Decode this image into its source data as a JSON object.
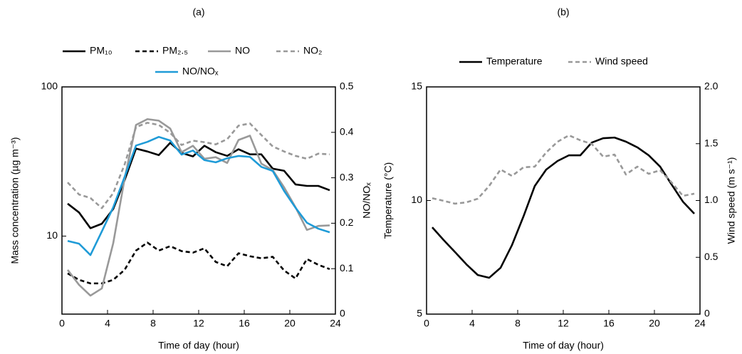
{
  "chart_data": [
    {
      "type": "line",
      "title": "(a)",
      "xlabel": "Time of day (hour)",
      "ylabel": "Mass concentration (µg m⁻³)",
      "y2label": "NO/NOₓ",
      "ylog": true,
      "legend": "top",
      "x": [
        0.5,
        1.5,
        2.5,
        3.5,
        4.5,
        5.5,
        6.5,
        7.5,
        8.5,
        9.5,
        10.5,
        11.5,
        12.5,
        13.5,
        14.5,
        15.5,
        16.5,
        17.5,
        18.5,
        19.5,
        20.5,
        21.5,
        22.5,
        23.5
      ],
      "xlim": [
        0,
        24
      ],
      "xticks": [
        0,
        4,
        8,
        12,
        16,
        20,
        24
      ],
      "ylim": [
        3,
        100
      ],
      "yticks": [
        10,
        100
      ],
      "y2lim": [
        0,
        0.5
      ],
      "y2ticks": [
        0,
        0.1,
        0.2,
        0.3,
        0.4,
        0.5
      ],
      "series": [
        {
          "name": "PM₁₀",
          "color": "#000000",
          "dash": false,
          "values": [
            16.5,
            14.4,
            11.3,
            12.1,
            15.2,
            23.7,
            38.6,
            36.9,
            34.9,
            42.2,
            36.1,
            34.2,
            40.3,
            36.5,
            34.5,
            38.2,
            35.3,
            35.3,
            28.3,
            27.4,
            22.2,
            21.7,
            21.7,
            20.3
          ]
        },
        {
          "name": "PM₂.₅",
          "color": "#000000",
          "dash": true,
          "values": [
            5.62,
            5.09,
            4.82,
            4.82,
            5.09,
            5.94,
            8.0,
            9.05,
            8.0,
            8.56,
            7.93,
            7.75,
            8.28,
            6.71,
            6.28,
            7.67,
            7.33,
            7.1,
            7.26,
            5.88,
            5.2,
            7.02,
            6.42,
            6.01
          ]
        },
        {
          "name": "NO",
          "color": "#999999",
          "dash": false,
          "values": [
            5.94,
            4.71,
            3.99,
            4.46,
            8.96,
            24.3,
            55.6,
            60.8,
            59.4,
            52.6,
            36.5,
            40.3,
            33.0,
            33.8,
            30.9,
            44.1,
            47.1,
            30.6,
            27.7,
            21.2,
            15.6,
            11.0,
            11.7,
            11.8
          ]
        },
        {
          "name": "NO₂",
          "color": "#999999",
          "dash": true,
          "values": [
            22.9,
            19.0,
            18.0,
            15.4,
            19.4,
            30.2,
            53.8,
            57.5,
            55.6,
            49.2,
            40.8,
            43.6,
            42.6,
            41.2,
            44.6,
            55.0,
            56.9,
            47.6,
            39.9,
            36.9,
            34.5,
            33.0,
            35.7,
            35.3
          ]
        },
        {
          "name": "NO/NOₓ",
          "color": "#1f9bd7",
          "dash": false,
          "axis": "y2",
          "values": [
            0.161,
            0.155,
            0.13,
            0.182,
            0.235,
            0.302,
            0.371,
            0.379,
            0.39,
            0.382,
            0.351,
            0.36,
            0.339,
            0.334,
            0.343,
            0.348,
            0.346,
            0.324,
            0.315,
            0.271,
            0.234,
            0.201,
            0.188,
            0.18
          ]
        }
      ]
    },
    {
      "type": "line",
      "title": "(b)",
      "xlabel": "Time of day (hour)",
      "ylabel": "Temperature (°C)",
      "y2label": "Wind speed (m s⁻¹)",
      "ylog": false,
      "legend": "top",
      "x": [
        0.5,
        1.5,
        2.5,
        3.5,
        4.5,
        5.5,
        6.5,
        7.5,
        8.5,
        9.5,
        10.5,
        11.5,
        12.5,
        13.5,
        14.5,
        15.5,
        16.5,
        17.5,
        18.5,
        19.5,
        20.5,
        21.5,
        22.5,
        23.5
      ],
      "xlim": [
        0,
        24
      ],
      "xticks": [
        0,
        4,
        8,
        12,
        16,
        20,
        24
      ],
      "ylim": [
        5,
        15
      ],
      "yticks": [
        5,
        10,
        15
      ],
      "y2lim": [
        0,
        2
      ],
      "y2ticks": [
        0,
        0.5,
        {
          "value": 1,
          "label": "1.0"
        },
        1.5,
        {
          "value": 2,
          "label": "2.0"
        }
      ],
      "series": [
        {
          "name": "Temperature",
          "color": "#000000",
          "dash": false,
          "values": [
            8.82,
            8.26,
            7.73,
            7.19,
            6.72,
            6.6,
            7.04,
            8.04,
            9.29,
            10.64,
            11.36,
            11.74,
            11.99,
            11.99,
            12.55,
            12.74,
            12.77,
            12.59,
            12.34,
            11.99,
            11.49,
            10.71,
            9.95,
            9.42
          ]
        },
        {
          "name": "Wind speed",
          "color": "#999999",
          "dash": true,
          "axis": "y2",
          "values": [
            1.02,
            0.997,
            0.972,
            0.984,
            1.016,
            1.129,
            1.273,
            1.216,
            1.292,
            1.298,
            1.423,
            1.517,
            1.574,
            1.53,
            1.498,
            1.386,
            1.404,
            1.229,
            1.298,
            1.235,
            1.266,
            1.16,
            1.041,
            1.06
          ]
        }
      ]
    }
  ]
}
